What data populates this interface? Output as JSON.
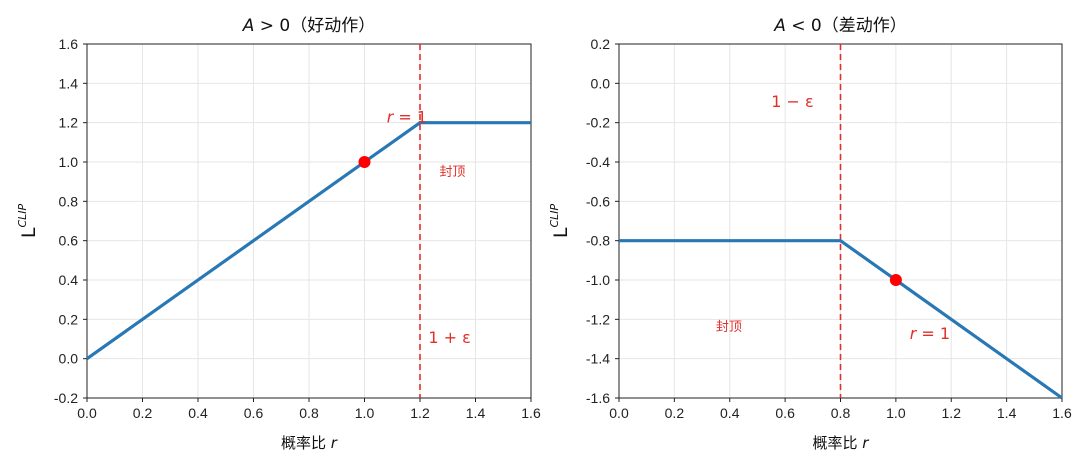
{
  "chart_data": [
    {
      "type": "line",
      "title": {
        "var": "A",
        "rest": " > 0（好动作）"
      },
      "xlabel": {
        "text": "概率比 ",
        "var": "r"
      },
      "ylabel": {
        "main": "L",
        "sup": "CLIP"
      },
      "xlim": [
        0.0,
        1.6
      ],
      "ylim": [
        -0.2,
        1.6
      ],
      "xticks": [
        "0.0",
        "0.2",
        "0.4",
        "0.6",
        "0.8",
        "1.0",
        "1.2",
        "1.4",
        "1.6"
      ],
      "yticks": [
        "-0.2",
        "0.0",
        "0.2",
        "0.4",
        "0.6",
        "0.8",
        "1.0",
        "1.2",
        "1.4",
        "1.6"
      ],
      "grid": true,
      "series": [
        {
          "x": [
            0.0,
            1.2,
            1.6
          ],
          "y": [
            0.0,
            1.2,
            1.2
          ],
          "color": "#2878b5"
        }
      ],
      "point": {
        "x": 1.0,
        "y": 1.0,
        "color": "#ff0000"
      },
      "vline": {
        "x": 1.2,
        "color": "#e0302a",
        "style": "dashed"
      },
      "annotations": [
        {
          "kind": "var",
          "var": "r",
          "rest": " = 1",
          "x": 1.08,
          "y": 1.2
        },
        {
          "kind": "text",
          "text": "封顶",
          "x": 1.27,
          "y": 0.93
        },
        {
          "kind": "text",
          "text": "1 + ε",
          "x": 1.23,
          "y": 0.08
        }
      ]
    },
    {
      "type": "line",
      "title": {
        "var": "A",
        "rest": " < 0（差动作）"
      },
      "xlabel": {
        "text": "概率比 ",
        "var": "r"
      },
      "ylabel": {
        "main": "L",
        "sup": "CLIP"
      },
      "xlim": [
        0.0,
        1.6
      ],
      "ylim": [
        -1.6,
        0.2
      ],
      "xticks": [
        "0.0",
        "0.2",
        "0.4",
        "0.6",
        "0.8",
        "1.0",
        "1.2",
        "1.4",
        "1.6"
      ],
      "yticks": [
        "-1.6",
        "-1.4",
        "-1.2",
        "-1.0",
        "-0.8",
        "-0.6",
        "-0.4",
        "-0.2",
        "0.0",
        "0.2"
      ],
      "grid": true,
      "series": [
        {
          "x": [
            0.0,
            0.8,
            1.6
          ],
          "y": [
            -0.8,
            -0.8,
            -1.6
          ],
          "color": "#2878b5"
        }
      ],
      "point": {
        "x": 1.0,
        "y": -1.0,
        "color": "#ff0000"
      },
      "vline": {
        "x": 0.8,
        "color": "#e0302a",
        "style": "dashed"
      },
      "annotations": [
        {
          "kind": "text",
          "text": "1 − ε",
          "x": 0.55,
          "y": -0.12
        },
        {
          "kind": "text",
          "text": "封顶",
          "x": 0.35,
          "y": -1.26
        },
        {
          "kind": "var",
          "var": "r",
          "rest": " = 1",
          "x": 1.05,
          "y": -1.3
        }
      ]
    }
  ]
}
